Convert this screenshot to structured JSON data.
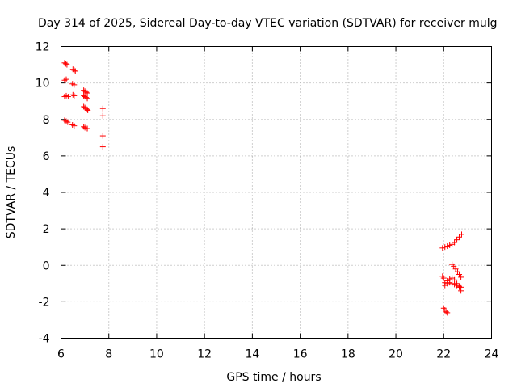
{
  "chart_data": {
    "type": "scatter",
    "title": "Day 314 of 2025, Sidereal Day-to-day VTEC variation (SDTVAR) for receiver mulg",
    "xlabel": "GPS time / hours",
    "ylabel": "SDTVAR / TECUs",
    "xlim": [
      6,
      24
    ],
    "ylim": [
      -4,
      12
    ],
    "xticks": [
      6,
      8,
      10,
      12,
      14,
      16,
      18,
      20,
      22,
      24
    ],
    "yticks": [
      -4,
      -2,
      0,
      2,
      4,
      6,
      8,
      10,
      12
    ],
    "grid": true,
    "marker": "+",
    "color": "#ff0000",
    "series": [
      {
        "name": "SDTVAR",
        "points": [
          [
            6.15,
            11.1
          ],
          [
            6.2,
            11.05
          ],
          [
            6.25,
            11.0
          ],
          [
            6.15,
            10.15
          ],
          [
            6.22,
            10.2
          ],
          [
            6.5,
            10.75
          ],
          [
            6.55,
            10.7
          ],
          [
            6.6,
            10.65
          ],
          [
            6.48,
            9.95
          ],
          [
            6.55,
            9.9
          ],
          [
            6.15,
            9.25
          ],
          [
            6.22,
            9.3
          ],
          [
            6.3,
            9.25
          ],
          [
            6.5,
            9.35
          ],
          [
            6.55,
            9.3
          ],
          [
            6.95,
            9.6
          ],
          [
            7.0,
            9.55
          ],
          [
            7.05,
            9.5
          ],
          [
            7.1,
            9.45
          ],
          [
            6.95,
            9.3
          ],
          [
            7.0,
            9.25
          ],
          [
            7.05,
            9.2
          ],
          [
            7.1,
            9.15
          ],
          [
            6.95,
            8.7
          ],
          [
            7.0,
            8.65
          ],
          [
            7.05,
            8.6
          ],
          [
            7.1,
            8.55
          ],
          [
            7.12,
            8.5
          ],
          [
            6.15,
            7.95
          ],
          [
            6.22,
            7.9
          ],
          [
            6.28,
            7.85
          ],
          [
            6.48,
            7.7
          ],
          [
            6.55,
            7.65
          ],
          [
            6.95,
            7.6
          ],
          [
            7.0,
            7.55
          ],
          [
            7.05,
            7.5
          ],
          [
            7.1,
            7.5
          ],
          [
            7.75,
            8.6
          ],
          [
            7.75,
            8.2
          ],
          [
            7.75,
            7.1
          ],
          [
            7.75,
            6.5
          ],
          [
            21.95,
            0.95
          ],
          [
            22.05,
            1.0
          ],
          [
            22.15,
            1.05
          ],
          [
            22.25,
            1.1
          ],
          [
            22.35,
            1.15
          ],
          [
            22.45,
            1.25
          ],
          [
            22.55,
            1.4
          ],
          [
            22.65,
            1.55
          ],
          [
            22.75,
            1.7
          ],
          [
            22.35,
            0.05
          ],
          [
            22.42,
            -0.05
          ],
          [
            22.5,
            -0.2
          ],
          [
            22.58,
            -0.35
          ],
          [
            22.65,
            -0.5
          ],
          [
            22.72,
            -0.65
          ],
          [
            21.95,
            -0.6
          ],
          [
            22.0,
            -0.7
          ],
          [
            22.05,
            -0.95
          ],
          [
            22.15,
            -0.85
          ],
          [
            22.25,
            -0.75
          ],
          [
            22.35,
            -0.7
          ],
          [
            22.45,
            -0.8
          ],
          [
            22.55,
            -1.0
          ],
          [
            22.65,
            -1.2
          ],
          [
            22.72,
            -1.4
          ],
          [
            22.05,
            -1.1
          ],
          [
            22.15,
            -1.0
          ],
          [
            22.25,
            -0.95
          ],
          [
            22.35,
            -1.0
          ],
          [
            22.45,
            -1.05
          ],
          [
            22.55,
            -1.1
          ],
          [
            22.65,
            -1.15
          ],
          [
            22.72,
            -1.2
          ],
          [
            22.0,
            -2.35
          ],
          [
            22.05,
            -2.45
          ],
          [
            22.1,
            -2.55
          ],
          [
            22.15,
            -2.6
          ]
        ]
      }
    ]
  }
}
